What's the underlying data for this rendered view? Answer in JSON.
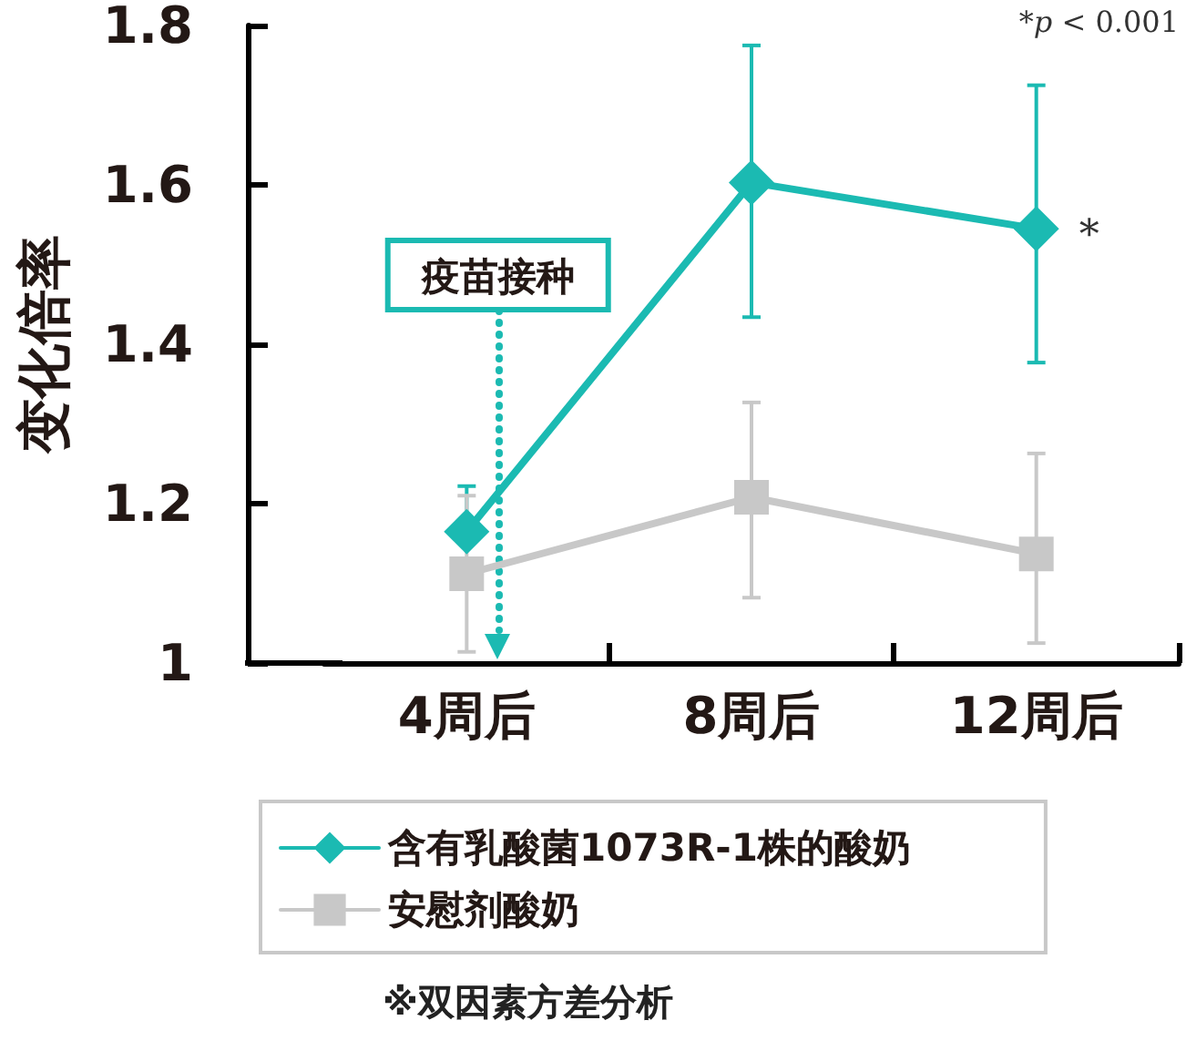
{
  "chart_data": {
    "type": "line",
    "ylabel": "变化倍率",
    "categories": [
      "4周后",
      "8周后",
      "12周后"
    ],
    "series": [
      {
        "name": "含有乳酸菌1073R-1株的酸奶",
        "color": "#1bbab2",
        "marker": "diamond",
        "values": [
          1.165,
          1.603,
          1.545
        ],
        "errors": [
          [
            1.165,
            1.222
          ],
          [
            1.434,
            1.775
          ],
          [
            1.377,
            1.725
          ]
        ]
      },
      {
        "name": "安慰剂酸奶",
        "color": "#c8c8c8",
        "marker": "square",
        "values": [
          1.112,
          1.208,
          1.137
        ],
        "errors": [
          [
            1.014,
            1.21
          ],
          [
            1.082,
            1.327
          ],
          [
            1.025,
            1.263
          ]
        ]
      }
    ],
    "ylim": [
      1,
      1.8
    ],
    "yticks": [
      1,
      1.2,
      1.4,
      1.6,
      1.8
    ],
    "legend": "bottom",
    "ref_lines": [
      {
        "axis": "x",
        "value": "4周后",
        "label": "疫苗接种",
        "color": "#1bbab2",
        "line_style": "dotted"
      }
    ],
    "annotations": [
      {
        "text": "*",
        "x": "12周后",
        "y": 1.545
      },
      "*p < 0.001",
      "※双因素方差分析"
    ]
  }
}
